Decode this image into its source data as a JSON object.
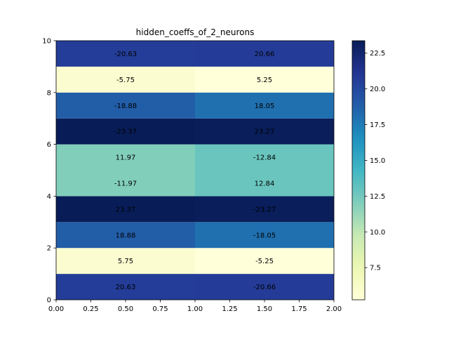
{
  "chart_data": {
    "type": "heatmap",
    "title": "hidden_coeffs_of_2_neurons",
    "xlabel": "",
    "ylabel": "",
    "xlim": [
      0,
      2
    ],
    "ylim": [
      0,
      10
    ],
    "x_ticks": [
      "0.00",
      "0.25",
      "0.50",
      "0.75",
      "1.00",
      "1.25",
      "1.50",
      "1.75",
      "2.00"
    ],
    "y_ticks": [
      "0",
      "2",
      "4",
      "6",
      "8",
      "10"
    ],
    "colormap": "YlGnBu",
    "colorbar": {
      "vmin": 5.25,
      "vmax": 23.37,
      "ticks": [
        "7.5",
        "10.0",
        "12.5",
        "15.0",
        "17.5",
        "20.0",
        "22.5"
      ]
    },
    "rows": [
      {
        "labels": [
          "20.63",
          "-20.66"
        ]
      },
      {
        "labels": [
          "5.75",
          "-5.25"
        ]
      },
      {
        "labels": [
          "18.88",
          "-18.05"
        ]
      },
      {
        "labels": [
          "23.37",
          "-23.27"
        ]
      },
      {
        "labels": [
          "-11.97",
          "12.84"
        ]
      },
      {
        "labels": [
          "11.97",
          "-12.84"
        ]
      },
      {
        "labels": [
          "-23.37",
          "23.27"
        ]
      },
      {
        "labels": [
          "-18.88",
          "18.05"
        ]
      },
      {
        "labels": [
          "-5.75",
          "5.25"
        ]
      },
      {
        "labels": [
          "-20.63",
          "20.66"
        ]
      }
    ],
    "color_values": [
      [
        20.63,
        20.66
      ],
      [
        5.75,
        5.25
      ],
      [
        18.88,
        18.05
      ],
      [
        23.37,
        23.27
      ],
      [
        11.97,
        12.84
      ],
      [
        11.97,
        12.84
      ],
      [
        23.37,
        23.27
      ],
      [
        18.88,
        18.05
      ],
      [
        5.75,
        5.25
      ],
      [
        20.63,
        20.66
      ]
    ]
  }
}
